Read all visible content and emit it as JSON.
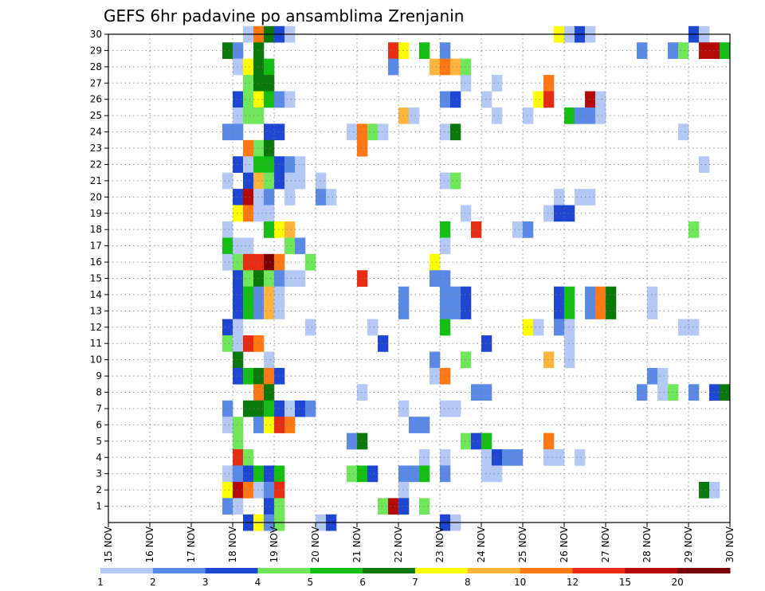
{
  "chart_data": {
    "type": "heatmap",
    "title": "GEFS 6hr padavine po ansamblima Zrenjanin",
    "xlabel": "",
    "ylabel": "",
    "x_tick_labels": [
      "15 NOV",
      "16 NOV",
      "17 NOV",
      "18 NOV",
      "19 NOV",
      "20 NOV",
      "21 NOV",
      "22 NOV",
      "23 NOV",
      "24 NOV",
      "25 NOV",
      "26 NOV",
      "27 NOV",
      "28 NOV",
      "29 NOV",
      "30 NOV"
    ],
    "y_tick_labels": [
      "1",
      "2",
      "3",
      "4",
      "5",
      "6",
      "7",
      "8",
      "9",
      "10",
      "11",
      "12",
      "13",
      "14",
      "15",
      "16",
      "17",
      "18",
      "19",
      "20",
      "21",
      "22",
      "23",
      "24",
      "25",
      "26",
      "27",
      "28",
      "29",
      "30"
    ],
    "xlim_day": [
      15,
      30
    ],
    "ylim": [
      0,
      30
    ],
    "grid": true,
    "grid_style": "dotted",
    "step_hours": 6,
    "colorbar": {
      "position": "bottom",
      "ticks": [
        "1",
        "2",
        "3",
        "4",
        "5",
        "6",
        "7",
        "8",
        "10",
        "12",
        "15",
        "20"
      ],
      "colors": [
        "#b4c8f5",
        "#5a8ae6",
        "#1e46d2",
        "#70e65a",
        "#14be14",
        "#0a780a",
        "#ffff00",
        "#ffb43c",
        "#ff7814",
        "#e62d14",
        "#b40a0a",
        "#780000"
      ]
    },
    "units_note": "cells: [member, day, level]; day = start of 6h step in November, level = colorbar class 1..12",
    "cells": [
      [
        30,
        18.25,
        1
      ],
      [
        30,
        18.5,
        9
      ],
      [
        30,
        18.75,
        6
      ],
      [
        30,
        19.0,
        3
      ],
      [
        30,
        19.25,
        1
      ],
      [
        30,
        25.75,
        7
      ],
      [
        30,
        26.0,
        1
      ],
      [
        30,
        26.25,
        3
      ],
      [
        30,
        26.5,
        1
      ],
      [
        30,
        29.0,
        3
      ],
      [
        30,
        29.25,
        1
      ],
      [
        29,
        17.75,
        6
      ],
      [
        29,
        18.0,
        2
      ],
      [
        29,
        18.5,
        6
      ],
      [
        29,
        21.75,
        10
      ],
      [
        29,
        22.0,
        7
      ],
      [
        29,
        22.5,
        5
      ],
      [
        29,
        23.0,
        2
      ],
      [
        29,
        27.75,
        2
      ],
      [
        29,
        28.5,
        2
      ],
      [
        29,
        28.75,
        4
      ],
      [
        29,
        29.25,
        11
      ],
      [
        29,
        29.5,
        11
      ],
      [
        29,
        29.75,
        5
      ],
      [
        28,
        18.0,
        1
      ],
      [
        28,
        18.25,
        7
      ],
      [
        28,
        18.5,
        6
      ],
      [
        28,
        18.75,
        5
      ],
      [
        28,
        21.75,
        2
      ],
      [
        28,
        22.75,
        8
      ],
      [
        28,
        23.0,
        9
      ],
      [
        28,
        23.25,
        8
      ],
      [
        28,
        23.5,
        4
      ],
      [
        27,
        18.25,
        4
      ],
      [
        27,
        18.5,
        6
      ],
      [
        27,
        18.75,
        6
      ],
      [
        27,
        23.5,
        1
      ],
      [
        27,
        24.25,
        1
      ],
      [
        27,
        25.5,
        9
      ],
      [
        26,
        18.0,
        3
      ],
      [
        26,
        18.25,
        4
      ],
      [
        26,
        18.5,
        7
      ],
      [
        26,
        18.75,
        5
      ],
      [
        26,
        19.0,
        2
      ],
      [
        26,
        19.25,
        1
      ],
      [
        26,
        23.0,
        2
      ],
      [
        26,
        23.25,
        3
      ],
      [
        26,
        24.0,
        1
      ],
      [
        26,
        25.25,
        7
      ],
      [
        26,
        25.5,
        10
      ],
      [
        26,
        26.5,
        11
      ],
      [
        26,
        26.75,
        1
      ],
      [
        25,
        18.0,
        1
      ],
      [
        25,
        18.25,
        4
      ],
      [
        25,
        18.5,
        4
      ],
      [
        25,
        22.0,
        8
      ],
      [
        25,
        22.25,
        1
      ],
      [
        25,
        24.25,
        1
      ],
      [
        25,
        25.0,
        1
      ],
      [
        25,
        26.0,
        5
      ],
      [
        25,
        26.25,
        2
      ],
      [
        25,
        26.5,
        2
      ],
      [
        25,
        26.75,
        1
      ],
      [
        24,
        17.75,
        2
      ],
      [
        24,
        18.0,
        2
      ],
      [
        24,
        18.75,
        3
      ],
      [
        24,
        19.0,
        3
      ],
      [
        24,
        20.75,
        1
      ],
      [
        24,
        21.0,
        9
      ],
      [
        24,
        21.25,
        4
      ],
      [
        24,
        21.5,
        1
      ],
      [
        24,
        23.0,
        1
      ],
      [
        24,
        23.25,
        6
      ],
      [
        24,
        28.75,
        1
      ],
      [
        23,
        18.25,
        9
      ],
      [
        23,
        18.5,
        4
      ],
      [
        23,
        18.75,
        6
      ],
      [
        23,
        21.0,
        9
      ],
      [
        22,
        18.0,
        3
      ],
      [
        22,
        18.25,
        1
      ],
      [
        22,
        18.5,
        5
      ],
      [
        22,
        18.75,
        5
      ],
      [
        22,
        19.0,
        3
      ],
      [
        22,
        19.25,
        2
      ],
      [
        22,
        19.5,
        1
      ],
      [
        22,
        29.25,
        1
      ],
      [
        21,
        17.75,
        1
      ],
      [
        21,
        18.25,
        3
      ],
      [
        21,
        18.5,
        8
      ],
      [
        21,
        18.75,
        4
      ],
      [
        21,
        19.0,
        3
      ],
      [
        21,
        19.25,
        1
      ],
      [
        21,
        19.5,
        1
      ],
      [
        21,
        20.0,
        1
      ],
      [
        21,
        23.0,
        1
      ],
      [
        21,
        23.25,
        4
      ],
      [
        20,
        18.0,
        3
      ],
      [
        20,
        18.25,
        11
      ],
      [
        20,
        18.5,
        1
      ],
      [
        20,
        18.75,
        2
      ],
      [
        20,
        19.25,
        1
      ],
      [
        20,
        20.0,
        2
      ],
      [
        20,
        20.25,
        1
      ],
      [
        20,
        25.75,
        1
      ],
      [
        20,
        26.25,
        1
      ],
      [
        20,
        26.5,
        1
      ],
      [
        19,
        18.0,
        7
      ],
      [
        19,
        18.25,
        9
      ],
      [
        19,
        18.5,
        1
      ],
      [
        19,
        18.75,
        1
      ],
      [
        19,
        23.5,
        1
      ],
      [
        19,
        25.5,
        1
      ],
      [
        19,
        25.75,
        3
      ],
      [
        19,
        26.0,
        3
      ],
      [
        18,
        17.75,
        1
      ],
      [
        18,
        18.75,
        5
      ],
      [
        18,
        19.0,
        7
      ],
      [
        18,
        19.25,
        8
      ],
      [
        18,
        23.0,
        5
      ],
      [
        18,
        23.75,
        10
      ],
      [
        18,
        24.75,
        1
      ],
      [
        18,
        25.0,
        2
      ],
      [
        18,
        29.0,
        4
      ],
      [
        17,
        17.75,
        5
      ],
      [
        17,
        18.0,
        1
      ],
      [
        17,
        18.25,
        1
      ],
      [
        17,
        19.25,
        4
      ],
      [
        17,
        19.5,
        2
      ],
      [
        17,
        23.0,
        1
      ],
      [
        16,
        17.75,
        1
      ],
      [
        16,
        18.0,
        4
      ],
      [
        16,
        18.25,
        10
      ],
      [
        16,
        18.5,
        10
      ],
      [
        16,
        18.75,
        12
      ],
      [
        16,
        19.0,
        9
      ],
      [
        16,
        19.75,
        4
      ],
      [
        16,
        22.75,
        7
      ],
      [
        15,
        18.0,
        3
      ],
      [
        15,
        18.25,
        4
      ],
      [
        15,
        18.5,
        6
      ],
      [
        15,
        18.75,
        4
      ],
      [
        15,
        19.0,
        2
      ],
      [
        15,
        19.25,
        1
      ],
      [
        15,
        19.5,
        1
      ],
      [
        15,
        21.0,
        10
      ],
      [
        15,
        22.75,
        2
      ],
      [
        15,
        23.0,
        2
      ],
      [
        14,
        18.0,
        3
      ],
      [
        14,
        18.25,
        5
      ],
      [
        14,
        18.5,
        2
      ],
      [
        14,
        18.75,
        8
      ],
      [
        14,
        19.0,
        1
      ],
      [
        14,
        22.0,
        2
      ],
      [
        14,
        23.0,
        2
      ],
      [
        14,
        23.25,
        2
      ],
      [
        14,
        23.5,
        3
      ],
      [
        14,
        25.75,
        3
      ],
      [
        14,
        26.0,
        5
      ],
      [
        14,
        26.5,
        2
      ],
      [
        14,
        26.75,
        9
      ],
      [
        14,
        27.0,
        6
      ],
      [
        14,
        28.0,
        1
      ],
      [
        13,
        18.0,
        3
      ],
      [
        13,
        18.25,
        5
      ],
      [
        13,
        18.5,
        2
      ],
      [
        13,
        18.75,
        8
      ],
      [
        13,
        19.0,
        1
      ],
      [
        13,
        22.0,
        2
      ],
      [
        13,
        23.0,
        2
      ],
      [
        13,
        23.25,
        2
      ],
      [
        13,
        23.5,
        3
      ],
      [
        13,
        25.75,
        3
      ],
      [
        13,
        26.0,
        5
      ],
      [
        13,
        26.5,
        2
      ],
      [
        13,
        26.75,
        9
      ],
      [
        13,
        27.0,
        6
      ],
      [
        13,
        28.0,
        1
      ],
      [
        12,
        17.75,
        3
      ],
      [
        12,
        18.0,
        1
      ],
      [
        12,
        19.75,
        1
      ],
      [
        12,
        21.25,
        1
      ],
      [
        12,
        23.0,
        5
      ],
      [
        12,
        25.0,
        7
      ],
      [
        12,
        25.25,
        1
      ],
      [
        12,
        25.75,
        2
      ],
      [
        12,
        26.0,
        1
      ],
      [
        12,
        28.75,
        1
      ],
      [
        12,
        29.0,
        1
      ],
      [
        11,
        17.75,
        4
      ],
      [
        11,
        18.0,
        1
      ],
      [
        11,
        18.25,
        10
      ],
      [
        11,
        18.5,
        9
      ],
      [
        11,
        21.5,
        3
      ],
      [
        11,
        24.0,
        3
      ],
      [
        11,
        26.0,
        1
      ],
      [
        10,
        18.0,
        6
      ],
      [
        10,
        18.75,
        1
      ],
      [
        10,
        22.75,
        2
      ],
      [
        10,
        23.5,
        4
      ],
      [
        10,
        25.5,
        8
      ],
      [
        10,
        26.0,
        1
      ],
      [
        9,
        18.0,
        3
      ],
      [
        9,
        18.25,
        5
      ],
      [
        9,
        18.5,
        6
      ],
      [
        9,
        18.75,
        9
      ],
      [
        9,
        19.0,
        3
      ],
      [
        9,
        22.75,
        1
      ],
      [
        9,
        23.0,
        9
      ],
      [
        9,
        28.0,
        2
      ],
      [
        9,
        28.25,
        1
      ],
      [
        8,
        18.5,
        9
      ],
      [
        8,
        18.75,
        6
      ],
      [
        8,
        21.0,
        1
      ],
      [
        8,
        23.75,
        2
      ],
      [
        8,
        24.0,
        2
      ],
      [
        8,
        27.75,
        2
      ],
      [
        8,
        28.25,
        1
      ],
      [
        8,
        28.5,
        4
      ],
      [
        8,
        29.0,
        2
      ],
      [
        8,
        29.5,
        3
      ],
      [
        8,
        29.75,
        6
      ],
      [
        7,
        17.75,
        2
      ],
      [
        7,
        18.25,
        6
      ],
      [
        7,
        18.5,
        6
      ],
      [
        7,
        18.75,
        5
      ],
      [
        7,
        19.0,
        3
      ],
      [
        7,
        19.25,
        1
      ],
      [
        7,
        19.5,
        3
      ],
      [
        7,
        19.75,
        2
      ],
      [
        7,
        22.0,
        1
      ],
      [
        7,
        23.0,
        1
      ],
      [
        7,
        23.25,
        1
      ],
      [
        6,
        17.75,
        1
      ],
      [
        6,
        18.0,
        4
      ],
      [
        6,
        18.5,
        2
      ],
      [
        6,
        18.75,
        7
      ],
      [
        6,
        19.0,
        10
      ],
      [
        6,
        19.25,
        9
      ],
      [
        6,
        22.25,
        2
      ],
      [
        6,
        22.5,
        2
      ],
      [
        5,
        18.0,
        4
      ],
      [
        5,
        20.75,
        2
      ],
      [
        5,
        21.0,
        6
      ],
      [
        5,
        23.5,
        4
      ],
      [
        5,
        23.75,
        3
      ],
      [
        5,
        24.0,
        5
      ],
      [
        5,
        25.5,
        9
      ],
      [
        4,
        18.0,
        10
      ],
      [
        4,
        18.25,
        4
      ],
      [
        4,
        22.5,
        1
      ],
      [
        4,
        23.0,
        1
      ],
      [
        4,
        24.0,
        1
      ],
      [
        4,
        24.25,
        3
      ],
      [
        4,
        24.5,
        2
      ],
      [
        4,
        24.75,
        2
      ],
      [
        4,
        25.5,
        1
      ],
      [
        4,
        25.75,
        1
      ],
      [
        4,
        26.25,
        1
      ],
      [
        3,
        17.75,
        1
      ],
      [
        3,
        18.0,
        2
      ],
      [
        3,
        18.25,
        3
      ],
      [
        3,
        18.5,
        5
      ],
      [
        3,
        18.75,
        3
      ],
      [
        3,
        19.0,
        5
      ],
      [
        3,
        20.75,
        4
      ],
      [
        3,
        21.0,
        5
      ],
      [
        3,
        21.25,
        3
      ],
      [
        3,
        22.0,
        2
      ],
      [
        3,
        22.25,
        2
      ],
      [
        3,
        22.5,
        5
      ],
      [
        3,
        23.0,
        2
      ],
      [
        3,
        24.0,
        1
      ],
      [
        3,
        24.25,
        1
      ],
      [
        2,
        17.75,
        7
      ],
      [
        2,
        18.0,
        11
      ],
      [
        2,
        18.25,
        9
      ],
      [
        2,
        18.5,
        1
      ],
      [
        2,
        18.75,
        2
      ],
      [
        2,
        19.0,
        10
      ],
      [
        2,
        22.0,
        1
      ],
      [
        2,
        29.25,
        6
      ],
      [
        2,
        29.5,
        1
      ],
      [
        1,
        17.75,
        2
      ],
      [
        1,
        18.0,
        1
      ],
      [
        1,
        18.75,
        3
      ],
      [
        1,
        19.0,
        4
      ],
      [
        1,
        21.5,
        4
      ],
      [
        1,
        21.75,
        11
      ],
      [
        1,
        22.0,
        3
      ],
      [
        1,
        22.5,
        4
      ],
      [
        0,
        18.25,
        3
      ],
      [
        0,
        18.5,
        7
      ],
      [
        0,
        18.75,
        2
      ],
      [
        0,
        19.0,
        4
      ],
      [
        0,
        20.0,
        1
      ],
      [
        0,
        20.25,
        3
      ],
      [
        0,
        23.0,
        3
      ],
      [
        0,
        23.25,
        1
      ]
    ]
  }
}
